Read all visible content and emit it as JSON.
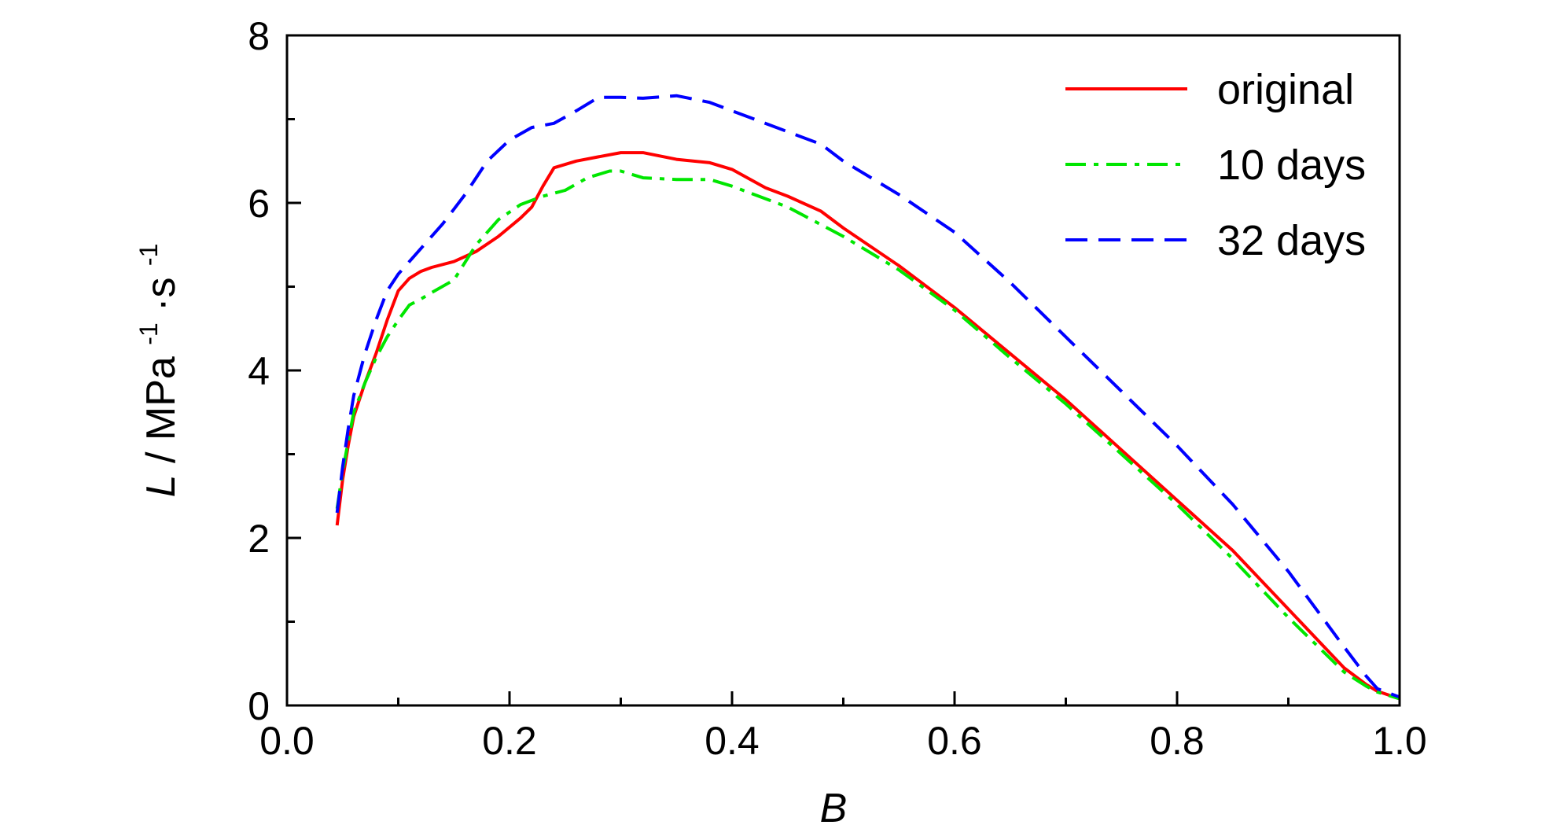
{
  "chart_data": {
    "type": "line",
    "xlabel": "B",
    "ylabel": "L / MPa·s",
    "ylabel_sup1": "-1",
    "ylabel_sup2": "-1",
    "xlim": [
      0.0,
      1.0
    ],
    "ylim": [
      0,
      8
    ],
    "x_ticks": [
      "0.0",
      "0.2",
      "0.4",
      "0.6",
      "0.8",
      "1.0"
    ],
    "y_ticks": [
      "0",
      "2",
      "4",
      "6",
      "8"
    ],
    "legend_position": "top-right",
    "grid": false,
    "series": [
      {
        "name": "original",
        "color": "#ff0000",
        "dash": "solid",
        "x": [
          0.045,
          0.05,
          0.055,
          0.06,
          0.07,
          0.08,
          0.09,
          0.1,
          0.11,
          0.12,
          0.13,
          0.15,
          0.17,
          0.19,
          0.21,
          0.22,
          0.23,
          0.24,
          0.26,
          0.28,
          0.3,
          0.32,
          0.35,
          0.38,
          0.4,
          0.43,
          0.45,
          0.48,
          0.5,
          0.55,
          0.6,
          0.65,
          0.7,
          0.75,
          0.8,
          0.85,
          0.9,
          0.95,
          0.97,
          0.98,
          1.0
        ],
        "y": [
          2.15,
          2.7,
          3.1,
          3.45,
          3.85,
          4.2,
          4.6,
          4.95,
          5.1,
          5.18,
          5.23,
          5.3,
          5.42,
          5.6,
          5.82,
          5.95,
          6.2,
          6.42,
          6.5,
          6.55,
          6.6,
          6.6,
          6.52,
          6.48,
          6.4,
          6.18,
          6.08,
          5.9,
          5.7,
          5.25,
          4.75,
          4.2,
          3.65,
          3.05,
          2.45,
          1.85,
          1.15,
          0.45,
          0.25,
          0.17,
          0.08
        ]
      },
      {
        "name": "10 days",
        "color": "#00e600",
        "dash": "dashdot",
        "x": [
          0.045,
          0.05,
          0.055,
          0.06,
          0.07,
          0.08,
          0.09,
          0.1,
          0.11,
          0.12,
          0.13,
          0.15,
          0.17,
          0.19,
          0.21,
          0.23,
          0.25,
          0.27,
          0.29,
          0.3,
          0.32,
          0.35,
          0.38,
          0.4,
          0.45,
          0.5,
          0.55,
          0.6,
          0.65,
          0.7,
          0.75,
          0.8,
          0.85,
          0.9,
          0.95,
          0.97,
          0.98,
          1.0
        ],
        "y": [
          2.35,
          2.8,
          3.15,
          3.5,
          3.85,
          4.15,
          4.4,
          4.6,
          4.78,
          4.85,
          4.93,
          5.08,
          5.5,
          5.8,
          5.98,
          6.08,
          6.15,
          6.3,
          6.38,
          6.38,
          6.3,
          6.28,
          6.28,
          6.2,
          5.95,
          5.6,
          5.2,
          4.72,
          4.15,
          3.6,
          3.0,
          2.4,
          1.75,
          1.05,
          0.4,
          0.23,
          0.16,
          0.08
        ]
      },
      {
        "name": "32 days",
        "color": "#0000ff",
        "dash": "dashed",
        "x": [
          0.045,
          0.05,
          0.055,
          0.06,
          0.07,
          0.08,
          0.09,
          0.1,
          0.12,
          0.14,
          0.16,
          0.18,
          0.2,
          0.22,
          0.24,
          0.26,
          0.28,
          0.3,
          0.32,
          0.35,
          0.38,
          0.4,
          0.42,
          0.45,
          0.48,
          0.5,
          0.55,
          0.6,
          0.65,
          0.7,
          0.75,
          0.8,
          0.85,
          0.9,
          0.95,
          0.97,
          0.98,
          1.0
        ],
        "y": [
          2.3,
          2.85,
          3.3,
          3.7,
          4.2,
          4.6,
          4.95,
          5.15,
          5.45,
          5.75,
          6.1,
          6.5,
          6.75,
          6.9,
          6.95,
          7.1,
          7.26,
          7.26,
          7.25,
          7.28,
          7.2,
          7.1,
          7.0,
          6.85,
          6.7,
          6.5,
          6.1,
          5.65,
          5.05,
          4.4,
          3.75,
          3.1,
          2.4,
          1.6,
          0.7,
          0.35,
          0.2,
          0.1
        ]
      }
    ]
  }
}
